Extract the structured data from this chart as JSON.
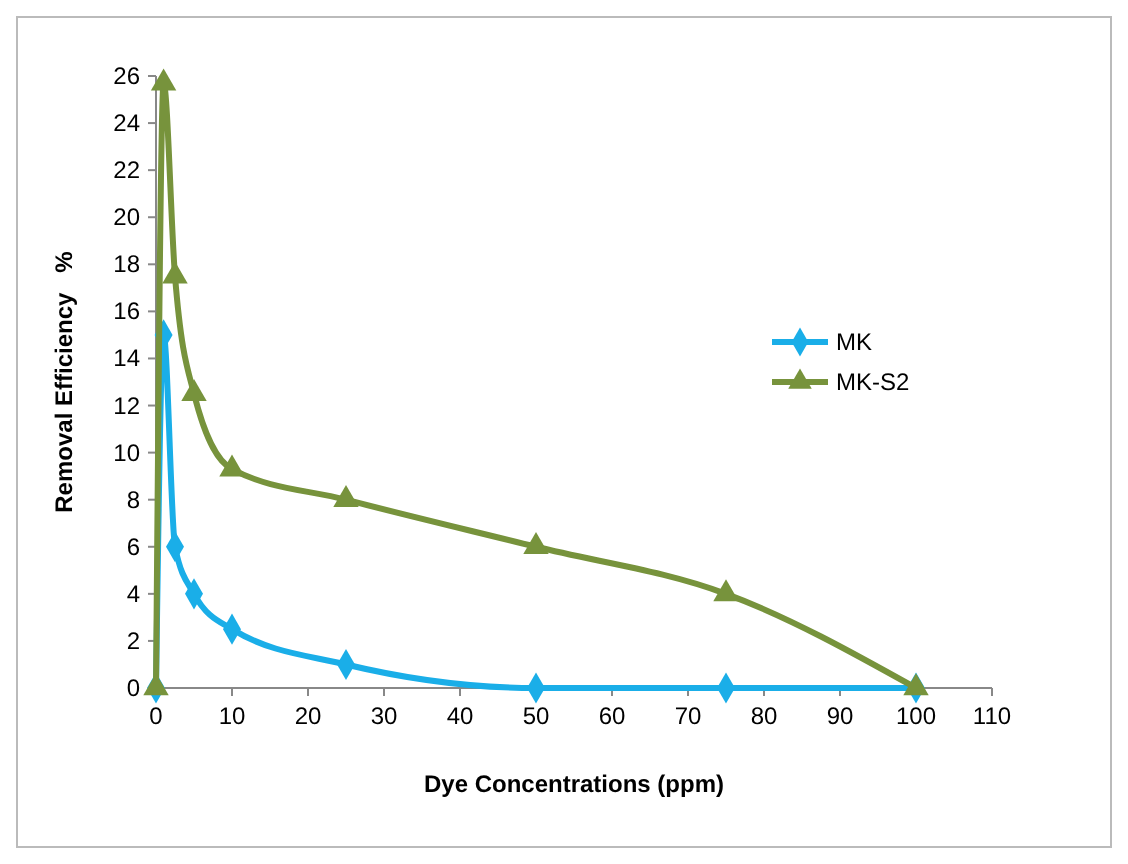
{
  "chart_data": {
    "type": "line",
    "xlabel": "Dye Concentrations (ppm)",
    "ylabel": "Removal Efficiency   %",
    "x": [
      0,
      1,
      2.5,
      5,
      10,
      25,
      50,
      75,
      100
    ],
    "series": [
      {
        "name": "MK",
        "color": "#1aaee8",
        "marker": "diamond",
        "values": [
          0,
          15,
          6,
          4,
          2.5,
          1,
          0,
          0,
          0
        ]
      },
      {
        "name": "MK-S2",
        "color": "#77933c",
        "marker": "triangle",
        "values": [
          0,
          25.7,
          17.5,
          12.5,
          9.3,
          8,
          6,
          4,
          0
        ]
      }
    ],
    "xlim": [
      0,
      110
    ],
    "xticks": [
      0,
      10,
      20,
      30,
      40,
      50,
      60,
      70,
      80,
      90,
      100,
      110
    ],
    "ylim": [
      0,
      26
    ],
    "yticks": [
      0,
      2,
      4,
      6,
      8,
      10,
      12,
      14,
      16,
      18,
      20,
      22,
      24,
      26
    ],
    "grid": false,
    "legend": "right"
  }
}
